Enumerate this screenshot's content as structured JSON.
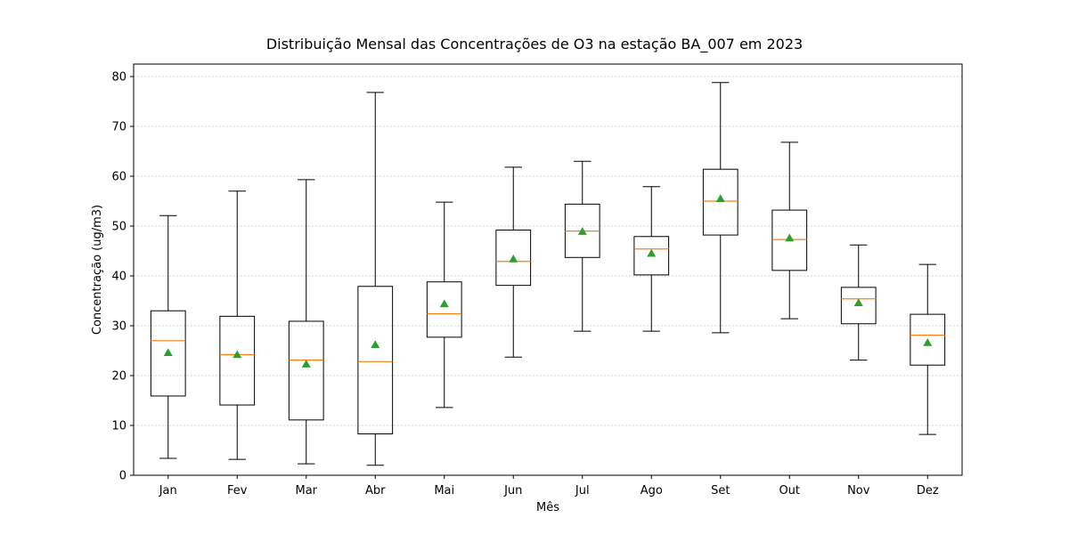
{
  "chart_data": {
    "type": "box",
    "title": "Distribuição Mensal das Concentrações de O3 na estação BA_007 em 2023",
    "xlabel": "Mês",
    "ylabel": "Concentração (ug/m3)",
    "ylim": [
      0,
      82.5
    ],
    "yticks": [
      0,
      10,
      20,
      30,
      40,
      50,
      60,
      70,
      80
    ],
    "grid": "y-dotted",
    "categories": [
      "Jan",
      "Fev",
      "Mar",
      "Abr",
      "Mai",
      "Jun",
      "Jul",
      "Ago",
      "Set",
      "Out",
      "Nov",
      "Dez"
    ],
    "boxes": [
      {
        "whisker_low": 3.4,
        "q1": 15.9,
        "median": 27.0,
        "q3": 33.0,
        "whisker_high": 52.1,
        "mean": 24.6
      },
      {
        "whisker_low": 3.2,
        "q1": 14.1,
        "median": 24.2,
        "q3": 31.9,
        "whisker_high": 57.0,
        "mean": 24.2
      },
      {
        "whisker_low": 2.3,
        "q1": 11.1,
        "median": 23.1,
        "q3": 30.9,
        "whisker_high": 59.3,
        "mean": 22.3
      },
      {
        "whisker_low": 2.0,
        "q1": 8.3,
        "median": 22.8,
        "q3": 37.9,
        "whisker_high": 76.8,
        "mean": 26.2
      },
      {
        "whisker_low": 13.6,
        "q1": 27.7,
        "median": 32.4,
        "q3": 38.8,
        "whisker_high": 54.8,
        "mean": 34.4
      },
      {
        "whisker_low": 23.7,
        "q1": 38.1,
        "median": 42.9,
        "q3": 49.2,
        "whisker_high": 61.8,
        "mean": 43.4
      },
      {
        "whisker_low": 28.9,
        "q1": 43.7,
        "median": 49.0,
        "q3": 54.4,
        "whisker_high": 63.0,
        "mean": 48.9
      },
      {
        "whisker_low": 28.9,
        "q1": 40.2,
        "median": 45.4,
        "q3": 47.9,
        "whisker_high": 57.9,
        "mean": 44.5
      },
      {
        "whisker_low": 28.6,
        "q1": 48.2,
        "median": 55.0,
        "q3": 61.4,
        "whisker_high": 78.8,
        "mean": 55.5
      },
      {
        "whisker_low": 31.4,
        "q1": 41.1,
        "median": 47.3,
        "q3": 53.2,
        "whisker_high": 66.8,
        "mean": 47.6
      },
      {
        "whisker_low": 23.1,
        "q1": 30.4,
        "median": 35.4,
        "q3": 37.7,
        "whisker_high": 46.2,
        "mean": 34.6
      },
      {
        "whisker_low": 8.2,
        "q1": 22.1,
        "median": 28.1,
        "q3": 32.3,
        "whisker_high": 42.3,
        "mean": 26.6
      }
    ],
    "colors": {
      "box": "#000000",
      "median": "#ff7f0e",
      "mean": "#2ca02c",
      "grid": "#b0b0b0"
    }
  }
}
